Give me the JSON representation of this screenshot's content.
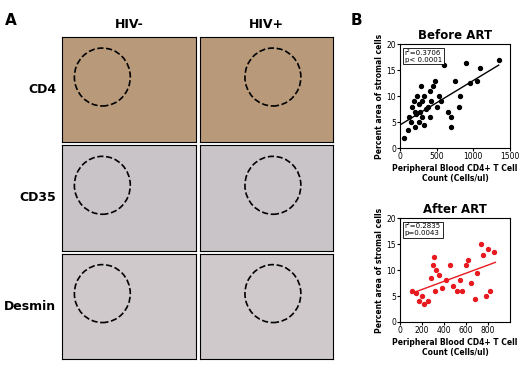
{
  "figure": {
    "panel_labels": [
      "A",
      "B"
    ]
  },
  "image_panel": {
    "columns": [
      "HIV-",
      "HIV+"
    ],
    "rows": [
      "CD4",
      "CD35",
      "Desmin"
    ]
  },
  "chart_data": [
    {
      "type": "scatter",
      "title": "Before ART",
      "x_label": "Peripheral Blood CD4+ T Cell Count (Cells/ul)",
      "y_label": "Percent area of stromal cells",
      "annotation": "r²=0.3706\np< 0.0001",
      "color": "#000000",
      "marker": "o",
      "x": [
        50,
        100,
        120,
        150,
        160,
        180,
        200,
        200,
        220,
        230,
        250,
        250,
        270,
        280,
        300,
        300,
        320,
        330,
        350,
        380,
        400,
        400,
        420,
        450,
        480,
        500,
        530,
        560,
        600,
        650,
        700,
        700,
        750,
        800,
        820,
        900,
        950,
        1050,
        1100,
        1350
      ],
      "values": [
        2,
        3.5,
        6,
        5,
        8,
        9,
        7,
        4,
        6.5,
        10,
        8.5,
        5,
        7,
        12,
        9,
        6,
        10,
        4.5,
        7.5,
        8,
        11,
        6,
        9,
        12,
        13,
        8,
        10,
        9,
        16,
        7,
        6,
        4,
        13,
        8,
        10,
        16.5,
        12.5,
        13,
        15.5,
        17
      ],
      "trend_line": {
        "x": [
          0,
          1350
        ],
        "values": [
          4.5,
          16
        ]
      },
      "xlim": [
        0,
        1500
      ],
      "xticks": [
        0,
        500,
        1000,
        1500
      ],
      "ylim": [
        0,
        20
      ],
      "yticks": [
        0,
        5,
        10,
        15,
        20
      ]
    },
    {
      "type": "scatter",
      "title": "After ART",
      "x_label": "Peripheral Blood CD4+ T Cell Count (Cells/ul)",
      "y_label": "Percent area of stromal cells",
      "annotation": "r²=0.2835\np=0.0043",
      "color": "#e8191f",
      "marker": "o",
      "x": [
        110,
        140,
        170,
        200,
        220,
        250,
        280,
        300,
        310,
        320,
        330,
        350,
        380,
        420,
        450,
        480,
        520,
        550,
        560,
        600,
        620,
        650,
        680,
        700,
        740,
        760,
        780,
        800,
        820,
        860
      ],
      "values": [
        6,
        5.5,
        4,
        5,
        3.5,
        4,
        8.5,
        11,
        12.5,
        6,
        10,
        9,
        6.5,
        8,
        11,
        7,
        6,
        8,
        6,
        11,
        12,
        7.5,
        4.5,
        9.5,
        15,
        13,
        5,
        14,
        6,
        13.5
      ],
      "trend_line": {
        "x": [
          100,
          870
        ],
        "values": [
          5.5,
          11.5
        ]
      },
      "xlim": [
        0,
        1000
      ],
      "xticks": [
        0,
        200,
        400,
        600,
        800
      ],
      "ylim": [
        0,
        20
      ],
      "yticks": [
        0,
        5,
        10,
        15,
        20
      ]
    }
  ]
}
